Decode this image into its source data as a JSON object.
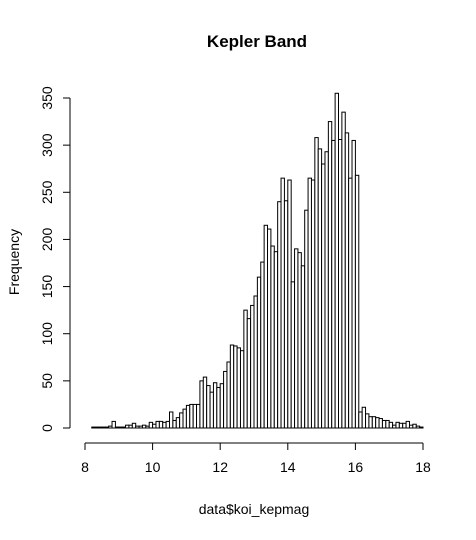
{
  "chart_data": {
    "type": "bar",
    "title": "Kepler Band",
    "xlabel": "data$koi_kepmag",
    "ylabel": "Frequency",
    "xlim": [
      8,
      18
    ],
    "ylim": [
      0,
      350
    ],
    "grid": false,
    "x_ticks": [
      "8",
      "10",
      "12",
      "14",
      "16",
      "18"
    ],
    "y_ticks": [
      "0",
      "50",
      "100",
      "150",
      "200",
      "250",
      "300",
      "350"
    ],
    "bin_width": 0.1,
    "bins_start": 8.2,
    "counts": [
      1,
      1,
      1,
      1,
      1,
      2,
      7,
      1,
      1,
      1,
      3,
      3,
      5,
      2,
      2,
      3,
      2,
      6,
      4,
      7,
      7,
      6,
      7,
      17,
      8,
      11,
      16,
      20,
      24,
      25,
      25,
      25,
      50,
      54,
      45,
      38,
      48,
      43,
      47,
      60,
      70,
      88,
      87,
      85,
      82,
      125,
      116,
      130,
      140,
      160,
      176,
      215,
      211,
      193,
      187,
      240,
      265,
      241,
      263,
      155,
      190,
      186,
      172,
      231,
      265,
      263,
      308,
      296,
      280,
      293,
      325,
      305,
      355,
      306,
      335,
      313,
      265,
      305,
      268,
      17,
      22,
      15,
      12,
      12,
      11,
      10,
      8,
      8,
      6,
      3,
      6,
      5,
      5,
      7,
      3,
      4,
      2,
      1
    ]
  }
}
